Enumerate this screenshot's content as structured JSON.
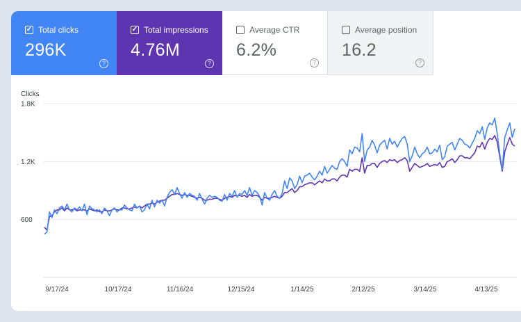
{
  "tiles": [
    {
      "label": "Total clicks",
      "value": "296K",
      "checked": true
    },
    {
      "label": "Total impressions",
      "value": "4.76M",
      "checked": true
    },
    {
      "label": "Average CTR",
      "value": "6.2%",
      "checked": false
    },
    {
      "label": "Average position",
      "value": "16.2",
      "checked": false
    }
  ],
  "help_glyph": "?",
  "check_glyph": "✓",
  "colors": {
    "clicks": "#4285f4",
    "impressions": "#5e35b1",
    "ctr": "#ffffff",
    "position": "#f1f3f4"
  },
  "chart_data": {
    "type": "line",
    "ylabel": "Clicks",
    "yticks": [
      "1.8K",
      "1.2K",
      "600"
    ],
    "ytick_values": [
      1800,
      1200,
      600
    ],
    "ylim": [
      0,
      1800
    ],
    "xticks": [
      "9/17/24",
      "10/17/24",
      "11/16/24",
      "12/15/24",
      "1/14/25",
      "2/12/25",
      "3/14/25",
      "4/13/25"
    ],
    "grid": true,
    "series": [
      {
        "name": "Total clicks",
        "color": "#4285f4",
        "values": [
          450,
          470,
          680,
          620,
          700,
          660,
          720,
          740,
          700,
          760,
          700,
          680,
          720,
          700,
          730,
          690,
          760,
          650,
          740,
          710,
          700,
          680,
          700,
          660,
          720,
          690,
          640,
          700,
          720,
          680,
          700,
          700,
          750,
          720,
          700,
          690,
          760,
          720,
          740,
          680,
          700,
          760,
          710,
          800,
          730,
          800,
          770,
          800,
          740,
          830,
          880,
          910,
          860,
          930,
          870,
          820,
          880,
          830,
          870,
          850,
          840,
          800,
          870,
          810,
          760,
          820,
          850,
          830,
          840,
          830,
          800,
          790,
          860,
          800,
          870,
          840,
          900,
          830,
          870,
          860,
          900,
          850,
          930,
          850,
          900,
          880,
          840,
          750,
          880,
          820,
          800,
          860,
          900,
          840,
          820,
          870,
          1000,
          920,
          1030,
          1000,
          920,
          960,
          1050,
          980,
          1050,
          1060,
          1080,
          1040,
          1010,
          1050,
          1100,
          1060,
          1150,
          1080,
          1120,
          1160,
          1130,
          1120,
          1200,
          1230,
          1200,
          1150,
          1320,
          1280,
          1350,
          1340,
          1300,
          1490,
          1200,
          1320,
          1350,
          1420,
          1370,
          1290,
          1370,
          1400,
          1420,
          1330,
          1440,
          1380,
          1410,
          1350,
          1400,
          1440,
          1460,
          1380,
          1200,
          1260,
          1350,
          1280,
          1240,
          1280,
          1300,
          1350,
          1280,
          1290,
          1330,
          1300,
          1370,
          1220,
          1250,
          1360,
          1380,
          1400,
          1320,
          1380,
          1440,
          1420,
          1380,
          1370,
          1340,
          1390,
          1440,
          1520,
          1490,
          1560,
          1430,
          1550,
          1600,
          1580,
          1650,
          1490,
          1280,
          1120,
          1450,
          1530,
          1600,
          1450,
          1540
        ]
      },
      {
        "name": "Total impressions",
        "color": "#5e35b1",
        "values": [
          520,
          490,
          630,
          640,
          680,
          700,
          700,
          720,
          690,
          720,
          700,
          700,
          710,
          690,
          700,
          700,
          700,
          690,
          710,
          700,
          690,
          700,
          680,
          680,
          700,
          690,
          690,
          700,
          710,
          700,
          700,
          720,
          720,
          710,
          710,
          720,
          730,
          720,
          740,
          720,
          740,
          760,
          760,
          770,
          760,
          780,
          790,
          800,
          800,
          820,
          840,
          860,
          860,
          870,
          860,
          850,
          860,
          850,
          850,
          840,
          830,
          820,
          830,
          820,
          800,
          800,
          810,
          810,
          820,
          820,
          810,
          800,
          820,
          830,
          840,
          830,
          850,
          840,
          850,
          840,
          850,
          830,
          860,
          840,
          850,
          850,
          830,
          800,
          830,
          820,
          820,
          830,
          840,
          830,
          820,
          840,
          880,
          880,
          900,
          920,
          880,
          900,
          940,
          940,
          960,
          970,
          980,
          980,
          960,
          980,
          1000,
          980,
          1020,
          1000,
          1000,
          1020,
          1020,
          1000,
          1040,
          1060,
          1060,
          1040,
          1120,
          1100,
          1120,
          1120,
          1100,
          1240,
          1080,
          1160,
          1160,
          1180,
          1180,
          1140,
          1180,
          1200,
          1210,
          1190,
          1220,
          1210,
          1220,
          1190,
          1210,
          1220,
          1240,
          1210,
          1100,
          1140,
          1180,
          1160,
          1140,
          1150,
          1160,
          1180,
          1150,
          1160,
          1170,
          1160,
          1190,
          1140,
          1150,
          1200,
          1210,
          1230,
          1190,
          1220,
          1260,
          1260,
          1240,
          1240,
          1230,
          1260,
          1290,
          1360,
          1350,
          1400,
          1330,
          1400,
          1440,
          1430,
          1470,
          1400,
          1250,
          1100,
          1300,
          1380,
          1450,
          1380,
          1360
        ]
      }
    ]
  }
}
